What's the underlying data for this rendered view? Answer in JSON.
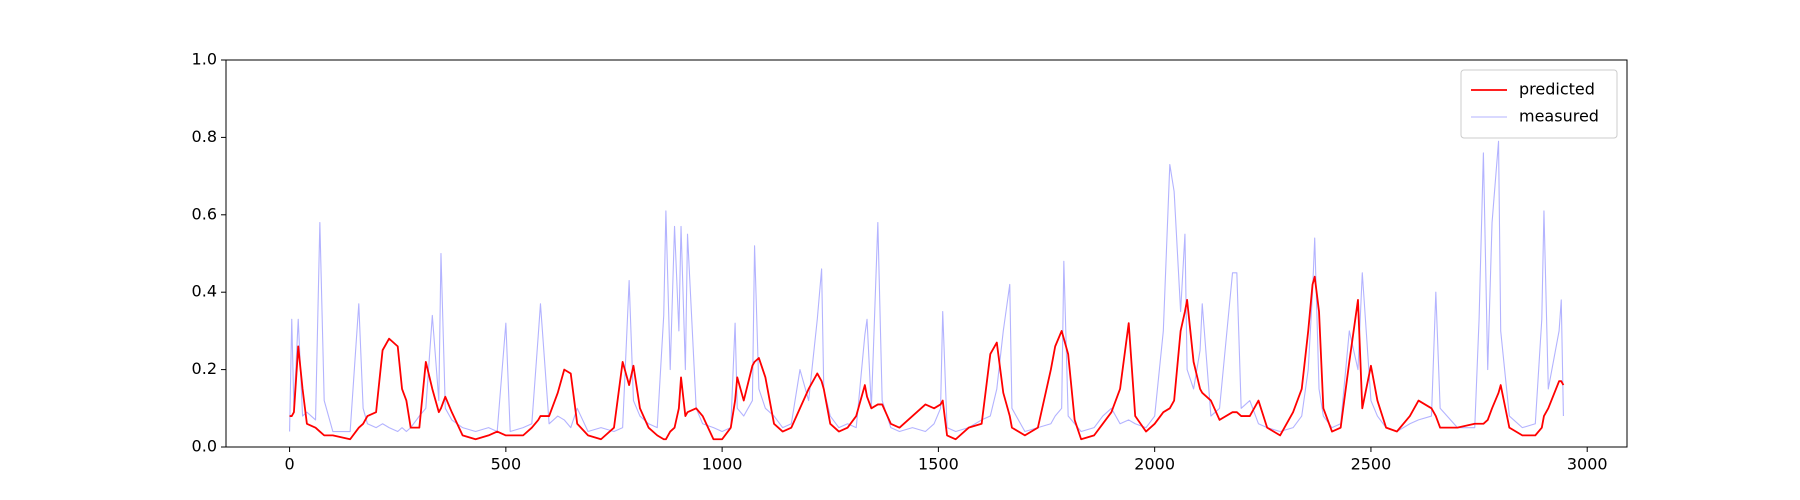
{
  "chart_data": {
    "type": "line",
    "x": [
      0,
      5,
      10,
      20,
      30,
      40,
      60,
      70,
      80,
      100,
      140,
      160,
      170,
      180,
      200,
      215,
      230,
      250,
      260,
      270,
      280,
      300,
      315,
      330,
      345,
      350,
      360,
      375,
      400,
      430,
      460,
      480,
      500,
      510,
      540,
      560,
      575,
      580,
      600,
      620,
      635,
      650,
      665,
      690,
      720,
      750,
      770,
      785,
      795,
      810,
      830,
      850,
      865,
      870,
      880,
      890,
      900,
      905,
      915,
      920,
      940,
      955,
      980,
      1000,
      1020,
      1030,
      1035,
      1050,
      1070,
      1075,
      1085,
      1100,
      1120,
      1140,
      1160,
      1180,
      1200,
      1220,
      1230,
      1235,
      1250,
      1270,
      1290,
      1310,
      1330,
      1335,
      1345,
      1360,
      1370,
      1390,
      1410,
      1440,
      1470,
      1490,
      1505,
      1510,
      1520,
      1540,
      1570,
      1600,
      1620,
      1635,
      1650,
      1665,
      1670,
      1700,
      1730,
      1760,
      1770,
      1785,
      1790,
      1800,
      1815,
      1830,
      1860,
      1880,
      1900,
      1920,
      1940,
      1955,
      1980,
      2000,
      2020,
      2035,
      2045,
      2060,
      2070,
      2075,
      2090,
      2105,
      2110,
      2130,
      2150,
      2180,
      2190,
      2200,
      2220,
      2240,
      2260,
      2290,
      2320,
      2340,
      2355,
      2365,
      2370,
      2380,
      2390,
      2410,
      2430,
      2450,
      2470,
      2480,
      2500,
      2515,
      2535,
      2560,
      2590,
      2610,
      2640,
      2650,
      2660,
      2700,
      2740,
      2750,
      2760,
      2770,
      2780,
      2795,
      2800,
      2820,
      2850,
      2880,
      2895,
      2900,
      2910,
      2935,
      2940,
      2945
    ],
    "series": [
      {
        "name": "predicted",
        "color": "#ff0000",
        "width": 1.8,
        "values": [
          0.08,
          0.08,
          0.09,
          0.26,
          0.15,
          0.06,
          0.05,
          0.04,
          0.03,
          0.03,
          0.02,
          0.05,
          0.06,
          0.08,
          0.09,
          0.25,
          0.28,
          0.26,
          0.15,
          0.12,
          0.05,
          0.05,
          0.22,
          0.15,
          0.09,
          0.1,
          0.13,
          0.09,
          0.03,
          0.02,
          0.03,
          0.04,
          0.03,
          0.03,
          0.03,
          0.05,
          0.07,
          0.08,
          0.08,
          0.14,
          0.2,
          0.19,
          0.06,
          0.03,
          0.02,
          0.05,
          0.22,
          0.16,
          0.21,
          0.1,
          0.05,
          0.03,
          0.02,
          0.02,
          0.04,
          0.05,
          0.1,
          0.18,
          0.08,
          0.09,
          0.1,
          0.08,
          0.02,
          0.02,
          0.05,
          0.12,
          0.18,
          0.12,
          0.21,
          0.22,
          0.23,
          0.18,
          0.06,
          0.04,
          0.05,
          0.1,
          0.15,
          0.19,
          0.17,
          0.15,
          0.06,
          0.04,
          0.05,
          0.08,
          0.16,
          0.13,
          0.1,
          0.11,
          0.11,
          0.06,
          0.05,
          0.08,
          0.11,
          0.1,
          0.11,
          0.12,
          0.03,
          0.02,
          0.05,
          0.06,
          0.24,
          0.27,
          0.14,
          0.08,
          0.05,
          0.03,
          0.05,
          0.2,
          0.26,
          0.3,
          0.28,
          0.24,
          0.07,
          0.02,
          0.03,
          0.06,
          0.09,
          0.15,
          0.32,
          0.08,
          0.04,
          0.06,
          0.09,
          0.1,
          0.12,
          0.3,
          0.35,
          0.38,
          0.22,
          0.15,
          0.14,
          0.12,
          0.07,
          0.09,
          0.09,
          0.08,
          0.08,
          0.12,
          0.05,
          0.03,
          0.09,
          0.15,
          0.3,
          0.42,
          0.44,
          0.35,
          0.1,
          0.04,
          0.05,
          0.22,
          0.38,
          0.1,
          0.21,
          0.12,
          0.05,
          0.04,
          0.08,
          0.12,
          0.1,
          0.08,
          0.05,
          0.05,
          0.06,
          0.06,
          0.06,
          0.07,
          0.1,
          0.14,
          0.16,
          0.05,
          0.03,
          0.03,
          0.05,
          0.08,
          0.1,
          0.17,
          0.17,
          0.16
        ]
      },
      {
        "name": "measured",
        "color": "#b3b3ff",
        "width": 1.1,
        "values": [
          0.04,
          0.33,
          0.1,
          0.33,
          0.08,
          0.09,
          0.07,
          0.58,
          0.12,
          0.04,
          0.04,
          0.37,
          0.1,
          0.06,
          0.05,
          0.06,
          0.05,
          0.04,
          0.05,
          0.04,
          0.05,
          0.08,
          0.1,
          0.34,
          0.12,
          0.5,
          0.1,
          0.07,
          0.05,
          0.04,
          0.05,
          0.04,
          0.32,
          0.04,
          0.05,
          0.06,
          0.29,
          0.37,
          0.06,
          0.08,
          0.07,
          0.05,
          0.1,
          0.04,
          0.05,
          0.04,
          0.05,
          0.43,
          0.12,
          0.08,
          0.06,
          0.05,
          0.34,
          0.61,
          0.2,
          0.57,
          0.3,
          0.57,
          0.2,
          0.55,
          0.1,
          0.06,
          0.05,
          0.04,
          0.05,
          0.32,
          0.1,
          0.08,
          0.12,
          0.52,
          0.15,
          0.1,
          0.08,
          0.05,
          0.06,
          0.2,
          0.12,
          0.33,
          0.46,
          0.15,
          0.08,
          0.05,
          0.06,
          0.05,
          0.29,
          0.33,
          0.1,
          0.58,
          0.12,
          0.05,
          0.04,
          0.05,
          0.04,
          0.06,
          0.1,
          0.35,
          0.05,
          0.04,
          0.05,
          0.07,
          0.08,
          0.15,
          0.3,
          0.42,
          0.1,
          0.04,
          0.05,
          0.06,
          0.08,
          0.1,
          0.48,
          0.08,
          0.06,
          0.04,
          0.05,
          0.08,
          0.1,
          0.06,
          0.07,
          0.06,
          0.05,
          0.08,
          0.3,
          0.73,
          0.66,
          0.35,
          0.55,
          0.2,
          0.15,
          0.25,
          0.37,
          0.08,
          0.1,
          0.45,
          0.45,
          0.1,
          0.12,
          0.06,
          0.05,
          0.04,
          0.05,
          0.08,
          0.2,
          0.4,
          0.54,
          0.15,
          0.08,
          0.05,
          0.06,
          0.3,
          0.2,
          0.45,
          0.12,
          0.08,
          0.05,
          0.04,
          0.06,
          0.07,
          0.08,
          0.4,
          0.1,
          0.05,
          0.05,
          0.33,
          0.76,
          0.2,
          0.58,
          0.79,
          0.3,
          0.08,
          0.05,
          0.06,
          0.33,
          0.61,
          0.15,
          0.3,
          0.38,
          0.08
        ]
      }
    ],
    "xlim": [
      -147,
      3092
    ],
    "ylim": [
      0,
      1
    ],
    "xticks": [
      0,
      500,
      1000,
      1500,
      2000,
      2500,
      3000
    ],
    "yticks": [
      {
        "value": 0,
        "label": "0.0"
      },
      0.2,
      0.4,
      0.6,
      0.8,
      {
        "value": 1,
        "label": "1.0"
      }
    ],
    "legend": "upper right"
  }
}
